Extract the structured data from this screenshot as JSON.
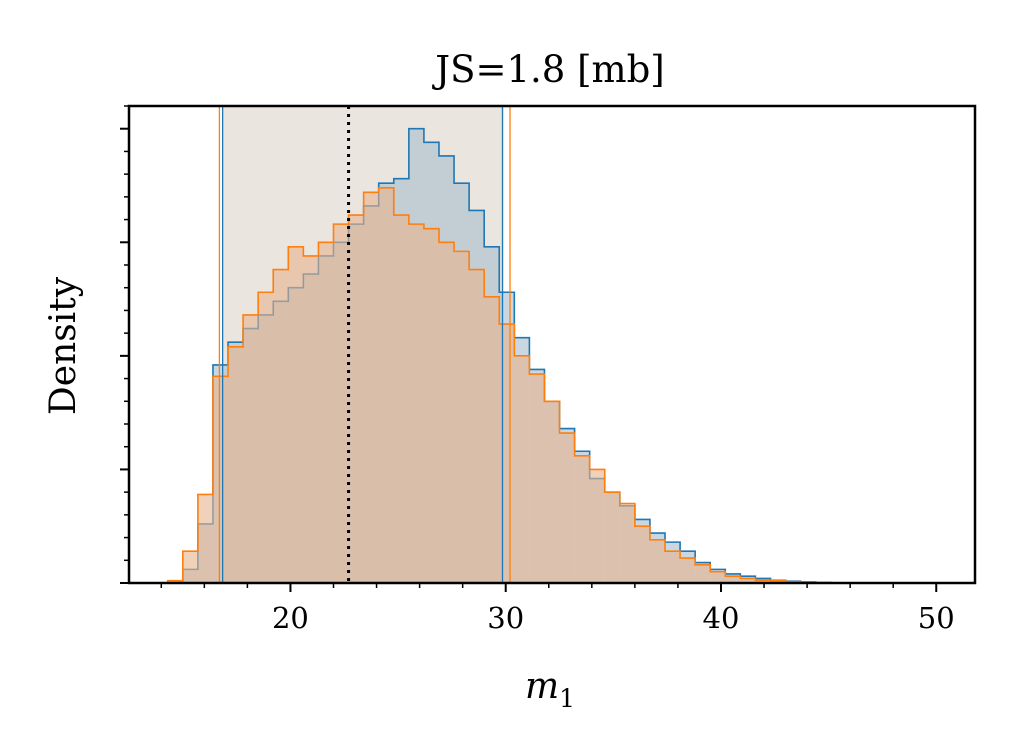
{
  "chart_data": {
    "type": "histogram",
    "title": "JS=1.8 [mb]",
    "xlabel": "m",
    "xlabel_subscript": "1",
    "ylabel": "Density",
    "xlim": [
      12.5,
      51.8
    ],
    "ylim": [
      0,
      1.05
    ],
    "x_ticks": [
      20,
      30,
      40,
      50
    ],
    "x_minor_step": 2,
    "y_major_ticks": [
      0,
      0.25,
      0.5,
      0.75,
      1.0
    ],
    "y_minor_step": 0.05,
    "y_tick_labels_shown": false,
    "grid": false,
    "bin_width": 0.7,
    "bin_start": 14.3,
    "band": {
      "lo": 16.85,
      "hi": 29.9,
      "color": "#d6cbc0"
    },
    "median_line": {
      "x": 22.7,
      "style": "dotted",
      "color": "#000000"
    },
    "series": [
      {
        "color": "#1f77b4",
        "fill": "#a9bfcd",
        "credible_interval": [
          16.85,
          29.85
        ],
        "densities": [
          0.0,
          0.03,
          0.13,
          0.48,
          0.53,
          0.56,
          0.59,
          0.62,
          0.65,
          0.68,
          0.72,
          0.75,
          0.79,
          0.83,
          0.88,
          0.89,
          1.0,
          0.97,
          0.94,
          0.88,
          0.82,
          0.74,
          0.64,
          0.54,
          0.47,
          0.4,
          0.34,
          0.29,
          0.23,
          0.2,
          0.17,
          0.14,
          0.11,
          0.09,
          0.07,
          0.045,
          0.03,
          0.02,
          0.015,
          0.01,
          0.006,
          0.004,
          0.002,
          0.001,
          0.0,
          0.0,
          0.0,
          0.0,
          0.0,
          0.0,
          0.0,
          0.0,
          0.0
        ]
      },
      {
        "color": "#ff7f0e",
        "fill": "#e6b48f",
        "credible_interval": [
          16.7,
          30.2
        ],
        "densities": [
          0.005,
          0.07,
          0.195,
          0.455,
          0.52,
          0.59,
          0.64,
          0.69,
          0.74,
          0.72,
          0.75,
          0.79,
          0.81,
          0.86,
          0.87,
          0.81,
          0.79,
          0.78,
          0.75,
          0.73,
          0.69,
          0.63,
          0.57,
          0.5,
          0.46,
          0.4,
          0.33,
          0.28,
          0.25,
          0.2,
          0.175,
          0.125,
          0.095,
          0.07,
          0.055,
          0.04,
          0.025,
          0.015,
          0.01,
          0.006,
          0.005,
          0.003,
          0.0,
          0.0,
          0.0,
          0.0,
          0.0,
          0.0,
          0.0,
          0.0,
          0.0,
          0.0,
          0.0
        ]
      }
    ]
  }
}
